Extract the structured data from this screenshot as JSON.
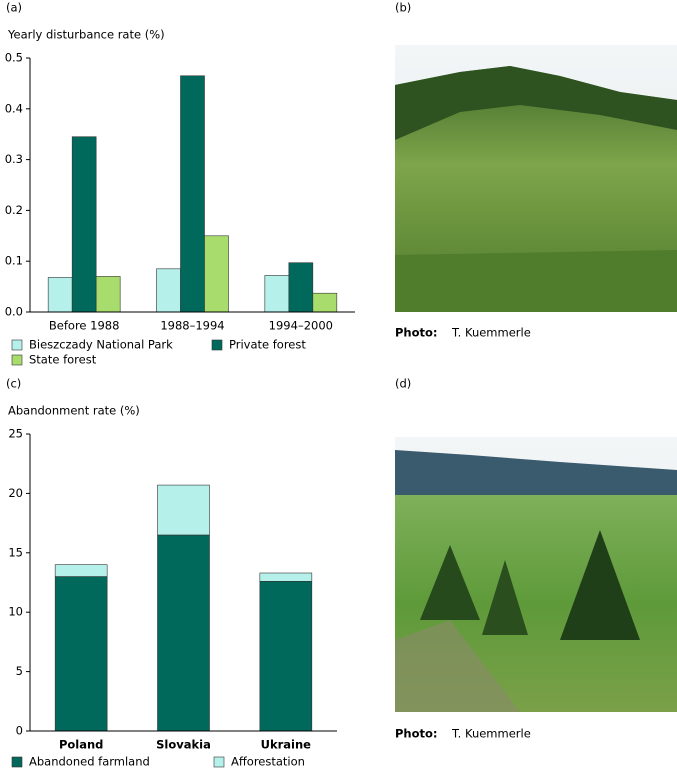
{
  "chart_data": [
    {
      "type": "bar",
      "panel": "(a)",
      "y_label": "Yearly disturbance rate (%)",
      "categories": [
        "Before 1988",
        "1988–1994",
        "1994–2000"
      ],
      "series": [
        {
          "name": "Bieszczady National Park",
          "color": "#b5f1ea",
          "values": [
            0.068,
            0.085,
            0.072
          ]
        },
        {
          "name": "Private forest",
          "color": "#00695c",
          "values": [
            0.345,
            0.465,
            0.097
          ]
        },
        {
          "name": "State forest",
          "color": "#a8dd6e",
          "values": [
            0.07,
            0.15,
            0.037
          ]
        }
      ],
      "ylim": [
        0,
        0.5
      ],
      "yticks": [
        {
          "value": 0,
          "label": "0.0"
        },
        0.1,
        0.2,
        0.3,
        0.4,
        0.5
      ]
    },
    {
      "type": "stacked_bar",
      "panel": "(c)",
      "y_label": "Abandonment rate (%)",
      "categories": [
        "Poland",
        "Slovakia",
        "Ukraine"
      ],
      "series": [
        {
          "name": "Abandoned farmland",
          "color": "#00695c",
          "values": [
            13,
            16.5,
            12.6
          ]
        },
        {
          "name": "Afforestation",
          "color": "#b5f1ea",
          "values": [
            1,
            4.2,
            0.7
          ]
        }
      ],
      "ylim": [
        0,
        25
      ],
      "yticks": [
        0,
        5,
        10,
        15,
        20,
        25
      ]
    }
  ],
  "photos": [
    {
      "panel": "(b)",
      "photo_label": "Photo:",
      "credit": "T. Kuemmerle"
    },
    {
      "panel": "(d)",
      "photo_label": "Photo:",
      "credit": "T. Kuemmerle"
    }
  ]
}
